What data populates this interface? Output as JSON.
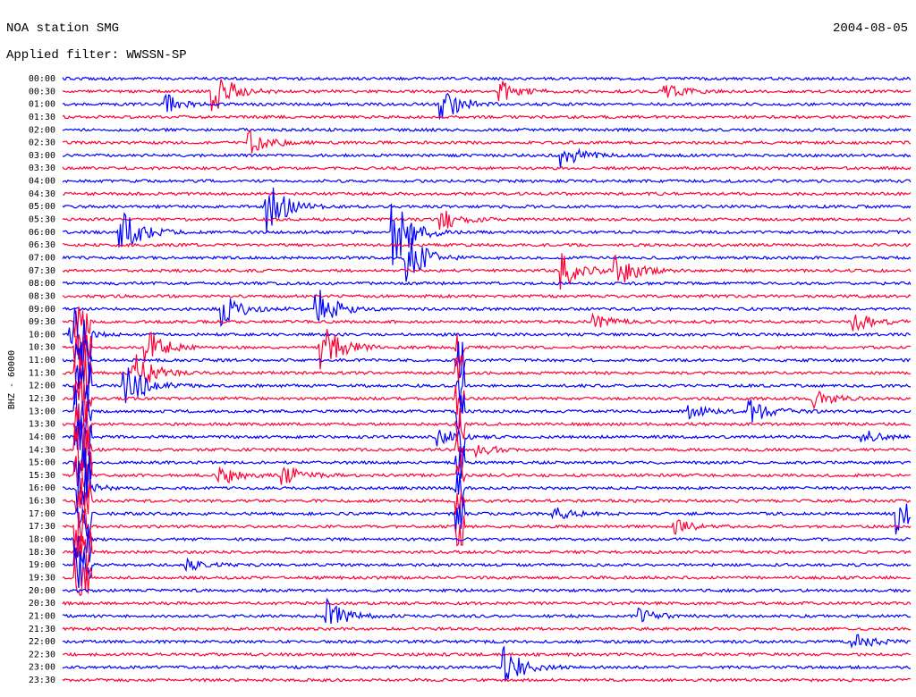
{
  "chart_data": {
    "type": "helicorder",
    "title": "NOA station SMG",
    "subtitle": "Applied filter: WWSSN-SP",
    "date": "2004-08-05",
    "ylabel": "BHZ - 60000",
    "categories": [
      "00:00",
      "00:30",
      "01:00",
      "01:30",
      "02:00",
      "02:30",
      "03:00",
      "03:30",
      "04:00",
      "04:30",
      "05:00",
      "05:30",
      "06:00",
      "06:30",
      "07:00",
      "07:30",
      "08:00",
      "08:30",
      "09:00",
      "09:30",
      "10:00",
      "10:30",
      "11:00",
      "11:30",
      "12:00",
      "12:30",
      "13:00",
      "13:30",
      "14:00",
      "14:30",
      "15:00",
      "15:30",
      "16:00",
      "16:30",
      "17:00",
      "17:30",
      "18:00",
      "18:30",
      "19:00",
      "19:30",
      "20:00",
      "20:30",
      "21:00",
      "21:30",
      "22:00",
      "22:30",
      "23:00",
      "23:30"
    ],
    "colors": [
      "#0000ff",
      "#ff0033"
    ]
  }
}
